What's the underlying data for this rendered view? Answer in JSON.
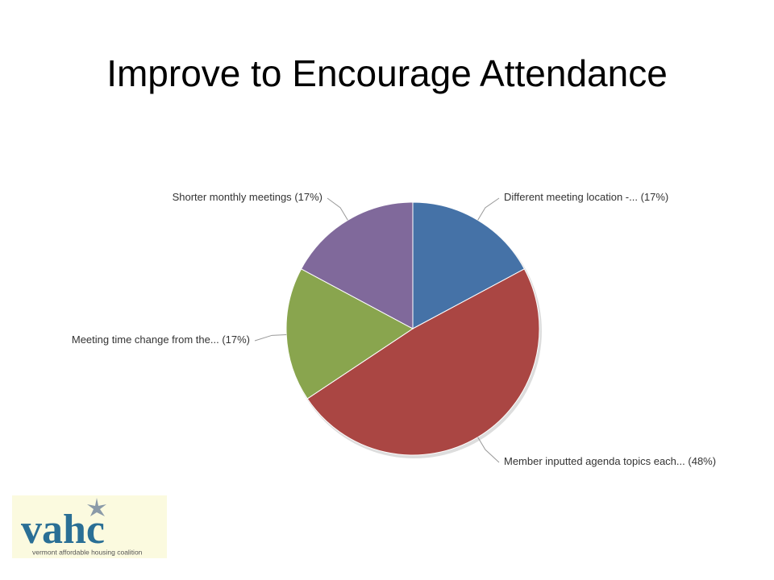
{
  "chart_data": {
    "type": "pie",
    "title": "Improve to Encourage Attendance",
    "categories": [
      "Different meeting location -...",
      "Member inputted agenda topics each...",
      "Meeting time change from the...",
      "Shorter monthly meetings"
    ],
    "values": [
      17,
      48,
      17,
      17
    ],
    "value_labels": [
      "(17%)",
      "(48%)",
      "(17%)",
      "(17%)"
    ],
    "colors": [
      "#4572a7",
      "#aa4643",
      "#89a54e",
      "#80699b"
    ]
  },
  "logo": {
    "name": "vahc",
    "tagline": "vermont affordable housing coalition"
  }
}
